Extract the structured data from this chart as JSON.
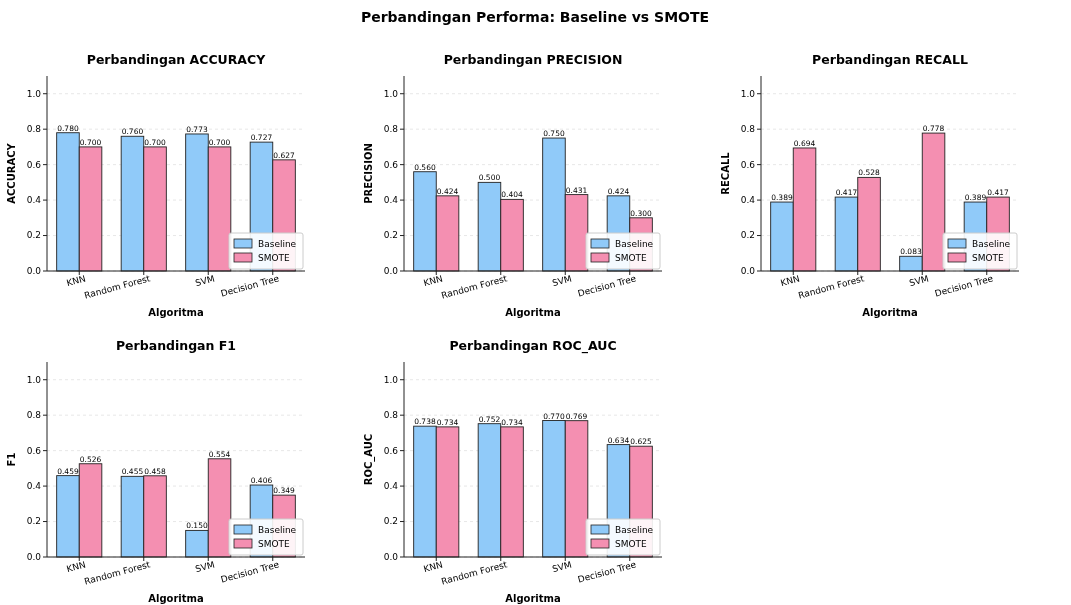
{
  "chart_data": [
    {
      "type": "other",
      "title": "Perbandingan Performa: Baseline vs SMOTE"
    },
    {
      "type": "bar",
      "title": "Perbandingan ACCURACY",
      "xlabel": "Algoritma",
      "ylabel": "ACCURACY",
      "categories": [
        "KNN",
        "Random Forest",
        "SVM",
        "Decision Tree"
      ],
      "series": [
        {
          "name": "Baseline",
          "color": "#90caf9",
          "values": [
            0.78,
            0.76,
            0.773,
            0.727
          ],
          "value_labels": [
            "0.780",
            "0.760",
            "0.773",
            "0.727"
          ]
        },
        {
          "name": "SMOTE",
          "color": "#f48fb1",
          "values": [
            0.7,
            0.7,
            0.7,
            0.627
          ],
          "value_labels": [
            "0.700",
            "0.700",
            "0.700",
            "0.627"
          ]
        }
      ],
      "ylim": [
        0,
        1.1
      ],
      "yticks": [
        {
          "value": 0,
          "label": "0.0"
        },
        {
          "value": 0.2,
          "label": "0.2"
        },
        {
          "value": 0.4,
          "label": "0.4"
        },
        {
          "value": 0.6,
          "label": "0.6"
        },
        {
          "value": 0.8,
          "label": "0.8"
        },
        {
          "value": 1,
          "label": "1.0"
        }
      ],
      "grid": "y",
      "legend": "bottom right"
    },
    {
      "type": "bar",
      "title": "Perbandingan PRECISION",
      "xlabel": "Algoritma",
      "ylabel": "PRECISION",
      "categories": [
        "KNN",
        "Random Forest",
        "SVM",
        "Decision Tree"
      ],
      "series": [
        {
          "name": "Baseline",
          "color": "#90caf9",
          "values": [
            0.56,
            0.5,
            0.75,
            0.424
          ],
          "value_labels": [
            "0.560",
            "0.500",
            "0.750",
            "0.424"
          ]
        },
        {
          "name": "SMOTE",
          "color": "#f48fb1",
          "values": [
            0.424,
            0.404,
            0.431,
            0.3
          ],
          "value_labels": [
            "0.424",
            "0.404",
            "0.431",
            "0.300"
          ]
        }
      ],
      "ylim": [
        0,
        1.1
      ],
      "yticks": [
        {
          "value": 0,
          "label": "0.0"
        },
        {
          "value": 0.2,
          "label": "0.2"
        },
        {
          "value": 0.4,
          "label": "0.4"
        },
        {
          "value": 0.6,
          "label": "0.6"
        },
        {
          "value": 0.8,
          "label": "0.8"
        },
        {
          "value": 1,
          "label": "1.0"
        }
      ],
      "grid": "y",
      "legend": "bottom right"
    },
    {
      "type": "bar",
      "title": "Perbandingan RECALL",
      "xlabel": "Algoritma",
      "ylabel": "RECALL",
      "categories": [
        "KNN",
        "Random Forest",
        "SVM",
        "Decision Tree"
      ],
      "series": [
        {
          "name": "Baseline",
          "color": "#90caf9",
          "values": [
            0.389,
            0.417,
            0.083,
            0.389
          ],
          "value_labels": [
            "0.389",
            "0.417",
            "0.083",
            "0.389"
          ]
        },
        {
          "name": "SMOTE",
          "color": "#f48fb1",
          "values": [
            0.694,
            0.528,
            0.778,
            0.417
          ],
          "value_labels": [
            "0.694",
            "0.528",
            "0.778",
            "0.417"
          ]
        }
      ],
      "ylim": [
        0,
        1.1
      ],
      "yticks": [
        {
          "value": 0,
          "label": "0.0"
        },
        {
          "value": 0.2,
          "label": "0.2"
        },
        {
          "value": 0.4,
          "label": "0.4"
        },
        {
          "value": 0.6,
          "label": "0.6"
        },
        {
          "value": 0.8,
          "label": "0.8"
        },
        {
          "value": 1,
          "label": "1.0"
        }
      ],
      "grid": "y",
      "legend": "bottom right"
    },
    {
      "type": "bar",
      "title": "Perbandingan F1",
      "xlabel": "Algoritma",
      "ylabel": "F1",
      "categories": [
        "KNN",
        "Random Forest",
        "SVM",
        "Decision Tree"
      ],
      "series": [
        {
          "name": "Baseline",
          "color": "#90caf9",
          "values": [
            0.459,
            0.455,
            0.15,
            0.406
          ],
          "value_labels": [
            "0.459",
            "0.455",
            "0.150",
            "0.406"
          ]
        },
        {
          "name": "SMOTE",
          "color": "#f48fb1",
          "values": [
            0.526,
            0.458,
            0.554,
            0.349
          ],
          "value_labels": [
            "0.526",
            "0.458",
            "0.554",
            "0.349"
          ]
        }
      ],
      "ylim": [
        0,
        1.1
      ],
      "yticks": [
        {
          "value": 0,
          "label": "0.0"
        },
        {
          "value": 0.2,
          "label": "0.2"
        },
        {
          "value": 0.4,
          "label": "0.4"
        },
        {
          "value": 0.6,
          "label": "0.6"
        },
        {
          "value": 0.8,
          "label": "0.8"
        },
        {
          "value": 1,
          "label": "1.0"
        }
      ],
      "grid": "y",
      "legend": "bottom right"
    },
    {
      "type": "bar",
      "title": "Perbandingan ROC_AUC",
      "xlabel": "Algoritma",
      "ylabel": "ROC_AUC",
      "categories": [
        "KNN",
        "Random Forest",
        "SVM",
        "Decision Tree"
      ],
      "series": [
        {
          "name": "Baseline",
          "color": "#90caf9",
          "values": [
            0.738,
            0.752,
            0.77,
            0.634
          ],
          "value_labels": [
            "0.738",
            "0.752",
            "0.770",
            "0.634"
          ]
        },
        {
          "name": "SMOTE",
          "color": "#f48fb1",
          "values": [
            0.734,
            0.734,
            0.769,
            0.625
          ],
          "value_labels": [
            "0.734",
            "0.734",
            "0.769",
            "0.625"
          ]
        }
      ],
      "ylim": [
        0,
        1.1
      ],
      "yticks": [
        {
          "value": 0,
          "label": "0.0"
        },
        {
          "value": 0.2,
          "label": "0.2"
        },
        {
          "value": 0.4,
          "label": "0.4"
        },
        {
          "value": 0.6,
          "label": "0.6"
        },
        {
          "value": 0.8,
          "label": "0.8"
        },
        {
          "value": 1,
          "label": "1.0"
        }
      ],
      "grid": "y",
      "legend": "bottom right"
    }
  ]
}
